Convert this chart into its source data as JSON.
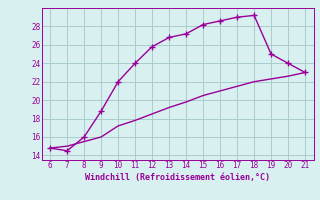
{
  "xlabel": "Windchill (Refroidissement éolien,°C)",
  "x_values": [
    6,
    7,
    8,
    9,
    10,
    11,
    12,
    13,
    14,
    15,
    16,
    17,
    18,
    19,
    20,
    21
  ],
  "y_main": [
    14.8,
    14.5,
    16.0,
    18.8,
    22.0,
    24.0,
    25.8,
    26.8,
    27.2,
    28.2,
    28.6,
    29.0,
    29.2,
    25.0,
    24.0,
    23.0
  ],
  "y_line2": [
    14.8,
    15.0,
    15.5,
    16.0,
    17.2,
    17.8,
    18.5,
    19.2,
    19.8,
    20.5,
    21.0,
    21.5,
    22.0,
    22.3,
    22.6,
    23.0
  ],
  "line_color": "#990099",
  "bg_color": "#d8f0f0",
  "grid_color": "#aacccc",
  "ylim": [
    13.5,
    30.0
  ],
  "xlim": [
    5.5,
    21.5
  ],
  "yticks": [
    14,
    16,
    18,
    20,
    22,
    24,
    26,
    28
  ],
  "xticks": [
    6,
    7,
    8,
    9,
    10,
    11,
    12,
    13,
    14,
    15,
    16,
    17,
    18,
    19,
    20,
    21
  ],
  "tick_fontsize": 5.5,
  "xlabel_fontsize": 6.0
}
